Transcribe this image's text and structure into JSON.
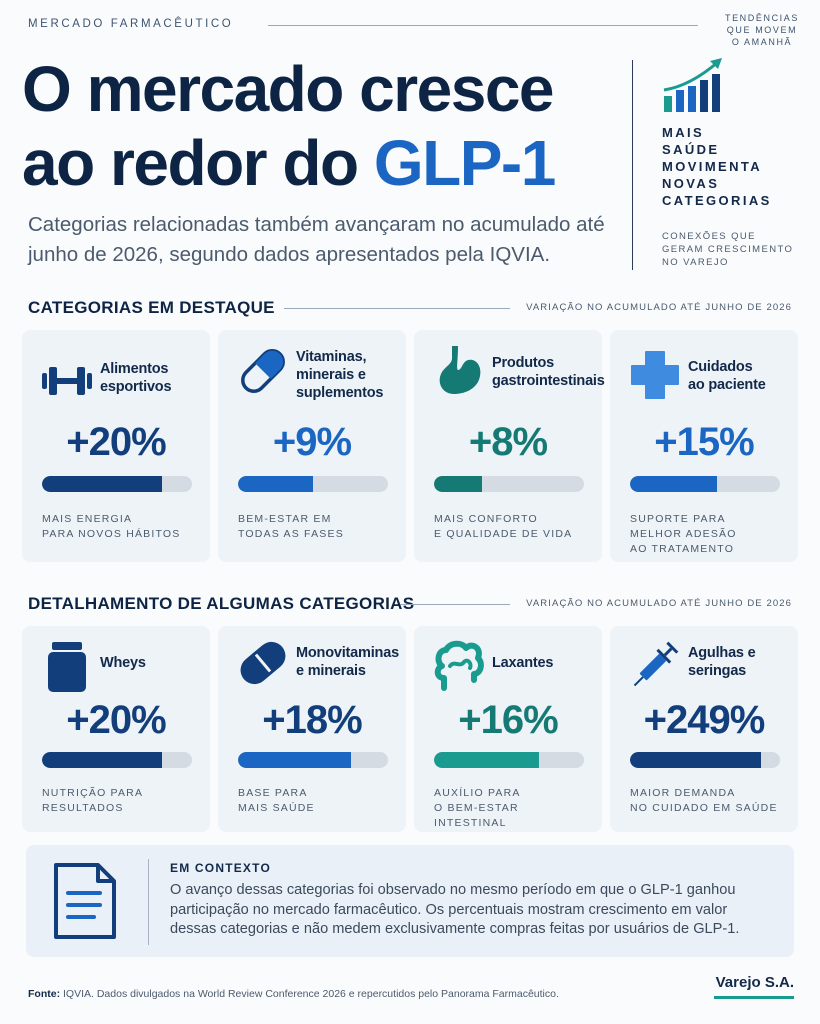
{
  "kicker": "MERCADO FARMACÊUTICO",
  "side_tag": [
    "TENDÊNCIAS",
    "QUE MOVEM",
    "O AMANHÃ"
  ],
  "title": {
    "part1": "O mercado cresce",
    "part2": "ao redor do ",
    "accent": "GLP-1"
  },
  "subtitle": "Categorias relacionadas também avançaram no acumulado até junho de 2026, segundo dados apresentados pela IQVIA.",
  "side_panel": {
    "icon": "growth-chart-icon",
    "headline": [
      "MAIS",
      "SAÚDE",
      "MOVIMENTA",
      "NOVAS",
      "CATEGORIAS"
    ],
    "sub": [
      "CONEXÕES QUE",
      "GERAM CRESCIMENTO",
      "NO VAREJO"
    ]
  },
  "section1": {
    "title": "CATEGORIAS EM DESTAQUE",
    "note": "VARIAÇÃO NO ACUMULADO ATÉ JUNHO DE 2026",
    "cards": [
      {
        "name": [
          "Alimentos",
          "esportivos"
        ],
        "value": "+20%",
        "fraction": 0.8,
        "icon": "dumbbell-icon",
        "color": "#123f7c",
        "desc": [
          "MAIS ENERGIA",
          "PARA NOVOS HÁBITOS"
        ]
      },
      {
        "name": [
          "Vitaminas,",
          "minerais e",
          "suplementos"
        ],
        "value": "+9%",
        "fraction": 0.5,
        "icon": "capsule-icon",
        "color": "#1a66c2",
        "desc": [
          "BEM-ESTAR EM",
          "TODAS AS FASES"
        ]
      },
      {
        "name": [
          "Produtos",
          "gastrointestinais"
        ],
        "value": "+8%",
        "fraction": 0.32,
        "icon": "stomach-icon",
        "color": "#157a74",
        "desc": [
          "MAIS CONFORTO",
          "E QUALIDADE DE VIDA"
        ]
      },
      {
        "name": [
          "Cuidados",
          "ao paciente"
        ],
        "value": "+15%",
        "fraction": 0.58,
        "icon": "medical-cross-icon",
        "color": "#1a66c2",
        "desc": [
          "SUPORTE PARA",
          "MELHOR ADESÃO",
          "AO TRATAMENTO"
        ]
      }
    ]
  },
  "section2": {
    "title": "DETALHAMENTO DE ALGUMAS CATEGORIAS",
    "note": "VARIAÇÃO NO ACUMULADO ATÉ JUNHO DE 2026",
    "cards": [
      {
        "name": [
          "Wheys"
        ],
        "value": "+20%",
        "fraction": 0.8,
        "icon": "whey-jar-icon",
        "color": "#123f7c",
        "desc": [
          "NUTRIÇÃO PARA",
          "RESULTADOS"
        ]
      },
      {
        "name": [
          "Monovitaminas",
          "e minerais"
        ],
        "value": "+18%",
        "fraction": 0.75,
        "icon": "pill-icon",
        "color": "#1a66c2",
        "desc": [
          "BASE PARA",
          "MAIS SAÚDE"
        ]
      },
      {
        "name": [
          "Laxantes"
        ],
        "value": "+16%",
        "fraction": 0.7,
        "icon": "intestine-icon",
        "color": "#1a9b8f",
        "desc": [
          "AUXÍLIO PARA",
          "O BEM-ESTAR INTESTINAL"
        ]
      },
      {
        "name": [
          "Agulhas e",
          "seringas"
        ],
        "value": "+249%",
        "fraction": 0.87,
        "icon": "syringe-icon",
        "color": "#123f7c",
        "desc": [
          "MAIOR DEMANDA",
          "NO CUIDADO EM SAÚDE"
        ]
      }
    ]
  },
  "context": {
    "label": "EM CONTEXTO",
    "icon": "document-icon",
    "lines": [
      "O avanço dessas categorias foi observado no mesmo período em que o GLP-1 ganhou",
      "participação no mercado farmacêutico. Os percentuais mostram crescimento em valor",
      "dessas categorias e não medem exclusivamente compras feitas por usuários de GLP-1."
    ]
  },
  "footer": {
    "label": "Fonte:",
    "text": " IQVIA. Dados divulgados na World Review Conference 2026 e repercutidos pelo Panorama Farmacêutico."
  },
  "brand": "Varejo S.A."
}
